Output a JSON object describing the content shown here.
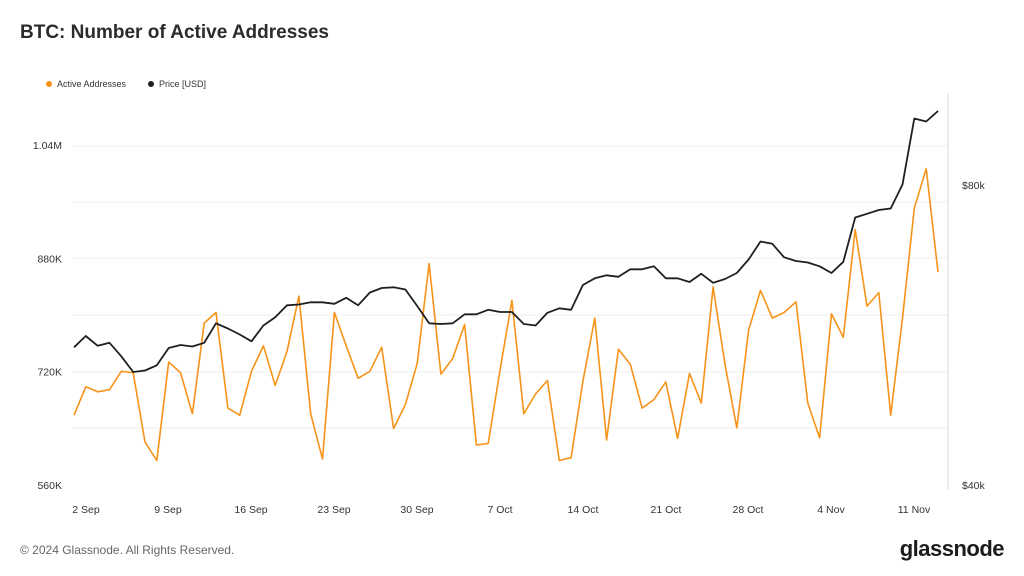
{
  "chart_data": {
    "type": "line",
    "title": "BTC: Number of Active Addresses",
    "x_ticks": [
      "2 Sep",
      "9 Sep",
      "16 Sep",
      "23 Sep",
      "30 Sep",
      "7 Oct",
      "14 Oct",
      "21 Oct",
      "28 Oct",
      "4 Nov",
      "11 Nov"
    ],
    "y_left": {
      "ticks": [
        "560K",
        "720K",
        "880K",
        "1.04M"
      ],
      "range": [
        560000,
        1040000
      ]
    },
    "y_right": {
      "ticks": [
        "$40k",
        "$80k"
      ]
    },
    "series": [
      {
        "name": "Active Addresses",
        "color": "#f7931a",
        "axis": "left",
        "values": [
          660000,
          700000,
          693000,
          696000,
          722000,
          720000,
          622000,
          596000,
          735000,
          720000,
          662000,
          790000,
          805000,
          670000,
          660000,
          722000,
          758000,
          702000,
          750000,
          828000,
          662000,
          598000,
          805000,
          758000,
          712000,
          722000,
          756000,
          641000,
          675000,
          733000,
          874000,
          718000,
          740000,
          788000,
          618000,
          620000,
          724000,
          822000,
          662000,
          690000,
          709000,
          596000,
          600000,
          708000,
          797000,
          625000,
          753000,
          732000,
          670000,
          682000,
          707000,
          627000,
          719000,
          677000,
          841000,
          732000,
          642000,
          780000,
          836000,
          797000,
          805000,
          820000,
          677000,
          628000,
          803000,
          770000,
          922000,
          814000,
          833000,
          660000,
          797000,
          952000,
          1008000,
          862000
        ]
      },
      {
        "name": "Price [USD]",
        "color": "#1f1f1f",
        "axis": "right",
        "values": [
          58500,
          60000,
          58700,
          59100,
          57300,
          55200,
          55400,
          56100,
          58400,
          58800,
          58600,
          59100,
          61700,
          61000,
          60200,
          59300,
          61400,
          62500,
          64100,
          64200,
          64500,
          64500,
          64300,
          65100,
          64100,
          65800,
          66400,
          66500,
          66200,
          64000,
          61700,
          61600,
          61700,
          62900,
          62900,
          63500,
          63200,
          63200,
          61600,
          61400,
          63100,
          63700,
          63500,
          66800,
          67700,
          68100,
          67900,
          68900,
          68900,
          69300,
          67700,
          67700,
          67200,
          68300,
          67100,
          67600,
          68400,
          70200,
          72600,
          72300,
          70500,
          70000,
          69800,
          69300,
          68400,
          69900,
          75800,
          76300,
          76800,
          77000,
          80200,
          89000,
          88600,
          90000
        ]
      }
    ],
    "grid": true,
    "legend_position": "top-left"
  },
  "footer": {
    "copyright": "© 2024 Glassnode. All Rights Reserved.",
    "brand": "glassnode"
  }
}
